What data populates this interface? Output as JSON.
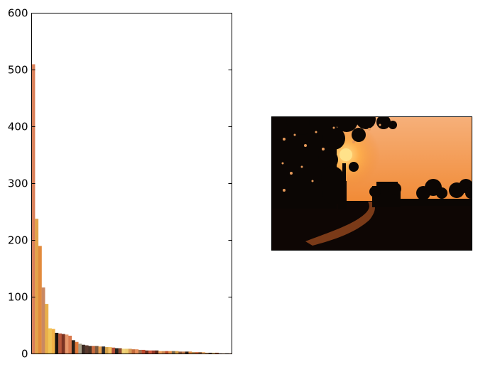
{
  "chart_data": {
    "type": "bar",
    "title": "",
    "xlabel": "",
    "ylabel": "",
    "ylim": [
      0,
      600
    ],
    "yticks": [
      0,
      100,
      200,
      300,
      400,
      500,
      600
    ],
    "x_ticks_shown": false,
    "grid": false,
    "legend": "none",
    "bar_color_mode": "each bar filled with its palette colour",
    "bars": [
      {
        "value": 510,
        "color": "#d9805a"
      },
      {
        "value": 238,
        "color": "#e3a34a"
      },
      {
        "value": 190,
        "color": "#e28a3c"
      },
      {
        "value": 117,
        "color": "#c98862"
      },
      {
        "value": 88,
        "color": "#e9b04a"
      },
      {
        "value": 45,
        "color": "#f0c455"
      },
      {
        "value": 44,
        "color": "#f2b247"
      },
      {
        "value": 37,
        "color": "#1a1410"
      },
      {
        "value": 36,
        "color": "#b6563a"
      },
      {
        "value": 35,
        "color": "#7a3322"
      },
      {
        "value": 34,
        "color": "#e6966a"
      },
      {
        "value": 32,
        "color": "#d97a4e"
      },
      {
        "value": 24,
        "color": "#2a2018"
      },
      {
        "value": 21,
        "color": "#e07a3a"
      },
      {
        "value": 18,
        "color": "#a69e88"
      },
      {
        "value": 16,
        "color": "#3b2a22"
      },
      {
        "value": 15,
        "color": "#5a3a2e"
      },
      {
        "value": 14,
        "color": "#4a3428"
      },
      {
        "value": 14,
        "color": "#c96b3e"
      },
      {
        "value": 14,
        "color": "#7a5a40"
      },
      {
        "value": 13,
        "color": "#e8a050"
      },
      {
        "value": 13,
        "color": "#2c2a2c"
      },
      {
        "value": 12,
        "color": "#d4a14a"
      },
      {
        "value": 12,
        "color": "#f2c060"
      },
      {
        "value": 11,
        "color": "#b24e36"
      },
      {
        "value": 10,
        "color": "#24241e"
      },
      {
        "value": 10,
        "color": "#8c4a30"
      },
      {
        "value": 9,
        "color": "#f1d27a"
      },
      {
        "value": 9,
        "color": "#eccc6e"
      },
      {
        "value": 9,
        "color": "#d89a58"
      },
      {
        "value": 8,
        "color": "#c46c3c"
      },
      {
        "value": 8,
        "color": "#e8905a"
      },
      {
        "value": 7,
        "color": "#a07050"
      },
      {
        "value": 7,
        "color": "#c04a2e"
      },
      {
        "value": 6,
        "color": "#6a3020"
      },
      {
        "value": 6,
        "color": "#d0583a"
      },
      {
        "value": 6,
        "color": "#9a3a28"
      },
      {
        "value": 6,
        "color": "#5a2a1c"
      },
      {
        "value": 5,
        "color": "#f0a058"
      },
      {
        "value": 5,
        "color": "#d08850"
      },
      {
        "value": 5,
        "color": "#c0502e"
      },
      {
        "value": 5,
        "color": "#e89048"
      },
      {
        "value": 5,
        "color": "#7a6a50"
      },
      {
        "value": 5,
        "color": "#d8a048"
      },
      {
        "value": 4,
        "color": "#8a5638"
      },
      {
        "value": 4,
        "color": "#c07848"
      },
      {
        "value": 4,
        "color": "#2a221c"
      },
      {
        "value": 4,
        "color": "#e0883e"
      },
      {
        "value": 3,
        "color": "#b08850"
      },
      {
        "value": 3,
        "color": "#d06a40"
      },
      {
        "value": 3,
        "color": "#8a6040"
      },
      {
        "value": 3,
        "color": "#f0b070"
      },
      {
        "value": 2,
        "color": "#c09060"
      },
      {
        "value": 2,
        "color": "#5a4030"
      },
      {
        "value": 2,
        "color": "#d8b068"
      },
      {
        "value": 2,
        "color": "#a05030"
      },
      {
        "value": 1,
        "color": "#70503a"
      },
      {
        "value": 1,
        "color": "#e0a060"
      },
      {
        "value": 1,
        "color": "#402a20"
      },
      {
        "value": 1,
        "color": "#c87848"
      }
    ]
  },
  "image_panel": {
    "description_icon": "sunset-landscape-photo",
    "sky_top_color": "#f6b07a",
    "sky_glow_color": "#f0842a",
    "sun_color": "#ffe28a",
    "ground_color": "#0e0604",
    "tree_color": "#0b0604",
    "road_color": "#7a3a18"
  }
}
